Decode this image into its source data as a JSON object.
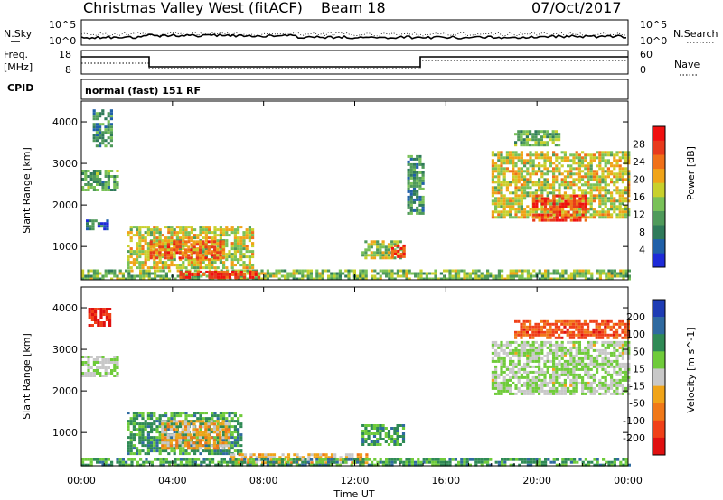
{
  "header": {
    "station_title": "Christmas Valley West (fitACF)",
    "beam_label": "Beam 18",
    "date": "07/Oct/2017"
  },
  "noise_panel": {
    "left_label": "N.Sky",
    "right_label": "N.Search",
    "left_ticks": [
      "10^5",
      "10^0"
    ],
    "right_ticks": [
      "10^5",
      "10^0"
    ]
  },
  "freq_panel": {
    "left_label_line1": "Freq.",
    "left_label_line2": "[MHz]",
    "left_ticks": [
      "18",
      "8"
    ],
    "right_ticks": [
      "60",
      "0"
    ],
    "right_label": "Nave"
  },
  "cpid": {
    "label": "CPID",
    "mode_text": "normal (fast) 151 RF"
  },
  "chart_data": [
    {
      "type": "heatmap",
      "name": "power",
      "ylabel": "Slant Range [km]",
      "ylim": [
        200,
        4500
      ],
      "yticks": [
        "1000",
        "2000",
        "3000",
        "4000"
      ],
      "colorbar_label": "Power [dB]",
      "colorbar_ticks": [
        "4",
        "8",
        "12",
        "16",
        "20",
        "24",
        "28"
      ],
      "colors": [
        "#1e2bd8",
        "#2060a8",
        "#2f7a5a",
        "#4f9a5a",
        "#79c158",
        "#c8d02c",
        "#f0a419",
        "#f07018",
        "#e83a1c",
        "#f01010"
      ],
      "regions": [
        {
          "t0": 0.0,
          "t1": 1.6,
          "r0": 2350,
          "r1": 2850,
          "level": 0.35
        },
        {
          "t0": 0.5,
          "t1": 1.3,
          "r0": 3450,
          "r1": 4300,
          "level": 0.3
        },
        {
          "t0": 0.2,
          "t1": 1.2,
          "r0": 1450,
          "r1": 1650,
          "level": 0.2
        },
        {
          "t0": 2.0,
          "t1": 7.5,
          "r0": 500,
          "r1": 1500,
          "level": 0.55
        },
        {
          "t0": 3.0,
          "t1": 6.3,
          "r0": 700,
          "r1": 1150,
          "level": 0.75
        },
        {
          "t0": 12.3,
          "t1": 14.2,
          "r0": 700,
          "r1": 1150,
          "level": 0.5
        },
        {
          "t0": 13.6,
          "t1": 14.2,
          "r0": 750,
          "r1": 1050,
          "level": 0.9
        },
        {
          "t0": 14.3,
          "t1": 15.0,
          "r0": 1800,
          "r1": 3200,
          "level": 0.3
        },
        {
          "t0": 18.0,
          "t1": 24.0,
          "r0": 1700,
          "r1": 3300,
          "level": 0.55
        },
        {
          "t0": 19.8,
          "t1": 22.2,
          "r0": 1650,
          "r1": 2250,
          "level": 0.85
        },
        {
          "t0": 19.0,
          "t1": 21.0,
          "r0": 3450,
          "r1": 3800,
          "level": 0.4
        },
        {
          "t0": 0.0,
          "t1": 24.0,
          "r0": 220,
          "r1": 450,
          "level": 0.45
        },
        {
          "t0": 4.3,
          "t1": 7.8,
          "r0": 230,
          "r1": 420,
          "level": 0.9
        }
      ]
    },
    {
      "type": "heatmap",
      "name": "velocity",
      "xlabel": "Time UT",
      "ylabel": "Slant Range [km]",
      "xlim": [
        0,
        24
      ],
      "ylim": [
        200,
        4500
      ],
      "xticks": [
        "00:00",
        "04:00",
        "08:00",
        "12:00",
        "16:00",
        "20:00",
        "00:00"
      ],
      "yticks": [
        "1000",
        "2000",
        "3000",
        "4000"
      ],
      "colorbar_label": "Velocity [m s^-1]",
      "colorbar_ticks": [
        "200",
        "100",
        "50",
        "15",
        "-15",
        "-50",
        "-100",
        "-200"
      ],
      "colors": [
        "#1e3cb4",
        "#2f6aa0",
        "#2f8a55",
        "#6fcb3a",
        "#c8c8c8",
        "#f0a419",
        "#f07818",
        "#f04018",
        "#e01010"
      ],
      "regions": [
        {
          "t0": 0.0,
          "t1": 1.6,
          "r0": 2350,
          "r1": 2850,
          "level": 0.45
        },
        {
          "t0": 0.3,
          "t1": 1.2,
          "r0": 3600,
          "r1": 4000,
          "level": 0.9
        },
        {
          "t0": 2.0,
          "t1": 7.0,
          "r0": 500,
          "r1": 1500,
          "level": 0.3
        },
        {
          "t0": 3.5,
          "t1": 6.5,
          "r0": 600,
          "r1": 1300,
          "level": 0.6
        },
        {
          "t0": 6.5,
          "t1": 12.5,
          "r0": 250,
          "r1": 500,
          "level": 0.6
        },
        {
          "t0": 12.3,
          "t1": 14.2,
          "r0": 700,
          "r1": 1200,
          "level": 0.3
        },
        {
          "t0": 18.0,
          "t1": 24.0,
          "r0": 1900,
          "r1": 3200,
          "level": 0.45
        },
        {
          "t0": 19.0,
          "t1": 24.0,
          "r0": 3300,
          "r1": 3700,
          "level": 0.8
        },
        {
          "t0": 0.0,
          "t1": 24.0,
          "r0": 220,
          "r1": 380,
          "level": 0.3
        }
      ]
    }
  ]
}
